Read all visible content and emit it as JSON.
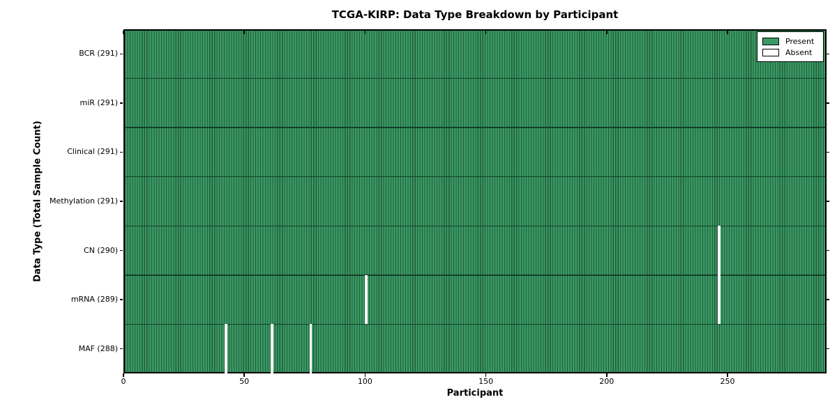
{
  "chart_data": {
    "type": "heatmap",
    "title": "TCGA-KIRP: Data Type Breakdown by Participant",
    "xlabel": "Participant",
    "ylabel": "Data Type (Total Sample Count)",
    "x_ticks": [
      0,
      50,
      100,
      150,
      200,
      250
    ],
    "xlim": [
      0,
      291
    ],
    "n_participants": 291,
    "rows": [
      {
        "label": "BCR (291)",
        "present_count": 291,
        "absent_participants": []
      },
      {
        "label": "miR (291)",
        "present_count": 291,
        "absent_participants": []
      },
      {
        "label": "Clinical (291)",
        "present_count": 291,
        "absent_participants": []
      },
      {
        "label": "Methylation (291)",
        "present_count": 291,
        "absent_participants": []
      },
      {
        "label": "CN (290)",
        "present_count": 290,
        "absent_participants": [
          246
        ]
      },
      {
        "label": "mRNA (289)",
        "present_count": 289,
        "absent_participants": [
          100,
          246
        ]
      },
      {
        "label": "MAF (288)",
        "present_count": 288,
        "absent_participants": [
          42,
          61,
          77
        ]
      }
    ],
    "legend": [
      {
        "label": "Present",
        "color": "#3b9a65"
      },
      {
        "label": "Absent",
        "color": "#ffffff"
      }
    ],
    "legend_position": "upper right",
    "colors": {
      "present_fill": "#3b9a65",
      "present_edge": "#1f5c39",
      "row_divider": "#14402a",
      "absent": "#ffffff",
      "frame": "#000000"
    }
  }
}
